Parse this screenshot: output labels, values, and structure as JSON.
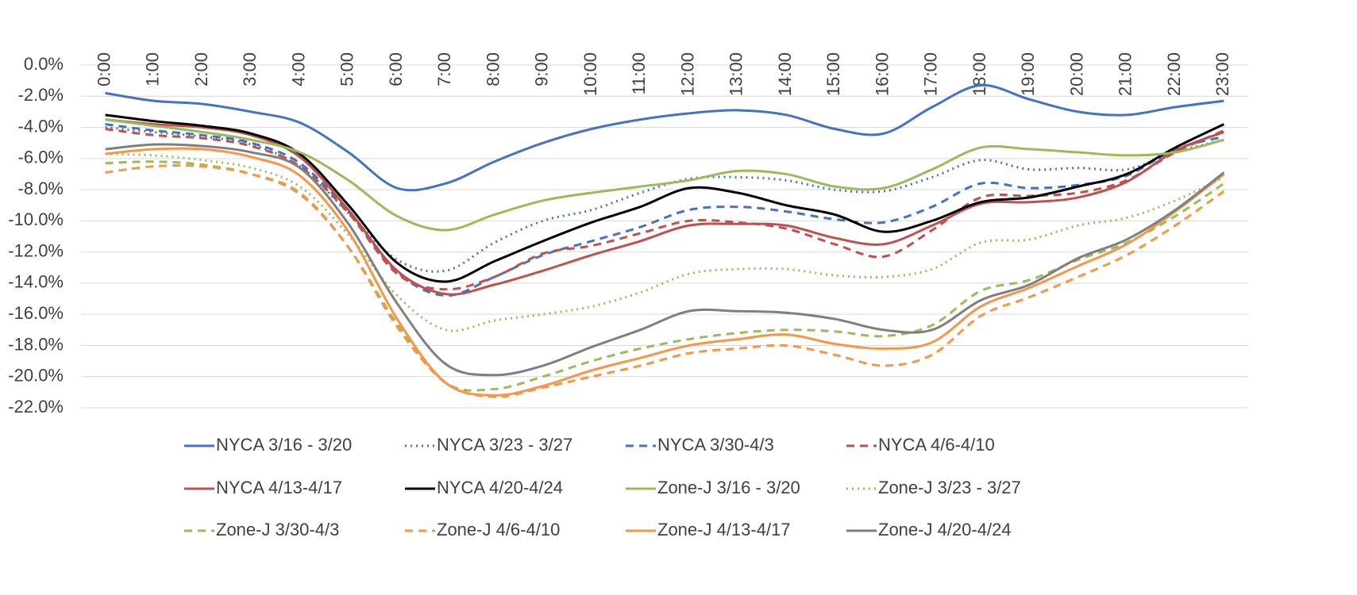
{
  "chart_data": {
    "type": "line",
    "categories": [
      "0:00",
      "1:00",
      "2:00",
      "3:00",
      "4:00",
      "5:00",
      "6:00",
      "7:00",
      "8:00",
      "9:00",
      "10:00",
      "11:00",
      "12:00",
      "13:00",
      "14:00",
      "15:00",
      "16:00",
      "17:00",
      "18:00",
      "19:00",
      "20:00",
      "21:00",
      "22:00",
      "23:00"
    ],
    "ylim": [
      -22,
      0
    ],
    "yticks": [
      {
        "value": 0,
        "label": "0.0%"
      },
      {
        "value": -2,
        "label": "-2.0%"
      },
      {
        "value": -4,
        "label": "-4.0%"
      },
      {
        "value": -6,
        "label": "-6.0%"
      },
      {
        "value": -8,
        "label": "-8.0%"
      },
      {
        "value": -10,
        "label": "-10.0%"
      },
      {
        "value": -12,
        "label": "-12.0%"
      },
      {
        "value": -14,
        "label": "-14.0%"
      },
      {
        "value": -16,
        "label": "-16.0%"
      },
      {
        "value": -18,
        "label": "-18.0%"
      },
      {
        "value": -20,
        "label": "-20.0%"
      },
      {
        "value": -22,
        "label": "-22.0%"
      }
    ],
    "grid": true,
    "legend": "bottom",
    "series": [
      {
        "name": "NYCA 3/16 - 3/20",
        "color": "#4472c4",
        "dash": "solid",
        "values": [
          -1.8,
          -2.3,
          -2.5,
          -3.0,
          -3.7,
          -5.6,
          -7.9,
          -7.6,
          -6.2,
          -5.0,
          -4.1,
          -3.5,
          -3.1,
          -2.9,
          -3.2,
          -4.1,
          -4.4,
          -2.7,
          -1.3,
          -2.2,
          -3.0,
          -3.2,
          -2.7,
          -2.3
        ]
      },
      {
        "name": "NYCA 3/23 - 3/27",
        "color": "#4472c4",
        "dash": "dot",
        "values": [
          -4.0,
          -4.3,
          -4.6,
          -5.1,
          -6.5,
          -9.5,
          -12.5,
          -13.2,
          -11.4,
          -10.0,
          -9.3,
          -8.2,
          -7.3,
          -7.2,
          -7.4,
          -8.0,
          -8.1,
          -7.2,
          -6.1,
          -6.7,
          -6.6,
          -6.7,
          -5.6,
          -4.8
        ]
      },
      {
        "name": "NYCA 3/30-4/3",
        "color": "#4472c4",
        "dash": "dash",
        "values": [
          -3.8,
          -4.2,
          -4.5,
          -5.0,
          -6.3,
          -9.4,
          -13.3,
          -14.8,
          -13.6,
          -12.2,
          -11.3,
          -10.4,
          -9.3,
          -9.1,
          -9.4,
          -9.9,
          -10.1,
          -9.1,
          -7.6,
          -7.9,
          -7.7,
          -7.1,
          -5.4,
          -4.6
        ]
      },
      {
        "name": "NYCA 4/6-4/10",
        "color": "#c0504d",
        "dash": "dash",
        "values": [
          -4.1,
          -4.5,
          -4.7,
          -5.2,
          -6.5,
          -9.5,
          -13.4,
          -14.4,
          -13.6,
          -12.1,
          -11.6,
          -10.8,
          -10.0,
          -10.1,
          -10.5,
          -11.5,
          -12.3,
          -10.6,
          -8.5,
          -8.4,
          -8.2,
          -7.4,
          -5.6,
          -4.2
        ]
      },
      {
        "name": "NYCA 4/13-4/17",
        "color": "#c0504d",
        "dash": "solid",
        "values": [
          -3.5,
          -3.8,
          -4.0,
          -4.5,
          -5.9,
          -9.3,
          -13.2,
          -14.7,
          -14.1,
          -13.2,
          -12.2,
          -11.3,
          -10.3,
          -10.2,
          -10.3,
          -11.1,
          -11.5,
          -10.3,
          -8.9,
          -8.8,
          -8.5,
          -7.5,
          -5.5,
          -4.3
        ]
      },
      {
        "name": "NYCA 4/20-4/24",
        "color": "#000000",
        "dash": "solid",
        "values": [
          -3.2,
          -3.6,
          -3.9,
          -4.4,
          -5.7,
          -9.0,
          -12.7,
          -13.9,
          -12.6,
          -11.3,
          -10.1,
          -9.1,
          -7.9,
          -8.2,
          -9.0,
          -9.6,
          -10.7,
          -10.0,
          -8.8,
          -8.5,
          -7.8,
          -7.0,
          -5.3,
          -3.8
        ]
      },
      {
        "name": "Zone-J 3/16 - 3/20",
        "color": "#9bbb59",
        "dash": "solid",
        "values": [
          -3.5,
          -3.9,
          -4.3,
          -4.8,
          -5.6,
          -7.4,
          -9.7,
          -10.6,
          -9.6,
          -8.7,
          -8.2,
          -7.8,
          -7.4,
          -6.8,
          -7.0,
          -7.8,
          -7.9,
          -6.7,
          -5.3,
          -5.4,
          -5.6,
          -5.8,
          -5.6,
          -4.8
        ]
      },
      {
        "name": "Zone-J 3/23 - 3/27",
        "color": "#9bbb59",
        "dash": "dot",
        "values": [
          -5.7,
          -5.8,
          -6.1,
          -6.6,
          -7.8,
          -10.9,
          -14.8,
          -17.0,
          -16.4,
          -16.0,
          -15.5,
          -14.6,
          -13.4,
          -13.1,
          -13.1,
          -13.5,
          -13.6,
          -13.1,
          -11.4,
          -11.2,
          -10.3,
          -9.8,
          -8.7,
          -7.2
        ]
      },
      {
        "name": "Zone-J 3/30-4/3",
        "color": "#9bbb59",
        "dash": "dash",
        "values": [
          -6.3,
          -6.2,
          -6.4,
          -7.0,
          -8.3,
          -11.7,
          -16.6,
          -20.4,
          -20.8,
          -20.0,
          -19.0,
          -18.2,
          -17.6,
          -17.2,
          -17.0,
          -17.1,
          -17.4,
          -16.7,
          -14.5,
          -13.8,
          -12.5,
          -11.4,
          -9.7,
          -7.6
        ]
      },
      {
        "name": "Zone-J 4/6-4/10",
        "color": "#f79646",
        "dash": "dash",
        "values": [
          -6.9,
          -6.5,
          -6.5,
          -7.0,
          -8.2,
          -11.7,
          -16.8,
          -20.4,
          -21.3,
          -20.7,
          -20.0,
          -19.3,
          -18.5,
          -18.2,
          -18.0,
          -18.6,
          -19.3,
          -18.6,
          -16.1,
          -14.9,
          -13.6,
          -12.2,
          -10.3,
          -8.1
        ]
      },
      {
        "name": "Zone-J 4/13-4/17",
        "color": "#f79646",
        "dash": "solid",
        "values": [
          -5.7,
          -5.4,
          -5.4,
          -5.9,
          -7.1,
          -10.7,
          -16.3,
          -20.4,
          -21.2,
          -20.6,
          -19.6,
          -18.8,
          -18.0,
          -17.6,
          -17.3,
          -17.9,
          -18.2,
          -17.8,
          -15.5,
          -14.3,
          -12.9,
          -11.5,
          -9.4,
          -7.0
        ]
      },
      {
        "name": "Zone-J 4/20-4/24",
        "color": "#7f7f7f",
        "dash": "solid",
        "values": [
          -5.4,
          -5.1,
          -5.2,
          -5.6,
          -6.6,
          -10.2,
          -15.3,
          -19.2,
          -19.9,
          -19.3,
          -18.1,
          -17.0,
          -15.8,
          -15.8,
          -15.9,
          -16.3,
          -17.0,
          -17.0,
          -15.1,
          -14.1,
          -12.4,
          -11.2,
          -9.3,
          -6.9
        ]
      }
    ]
  }
}
